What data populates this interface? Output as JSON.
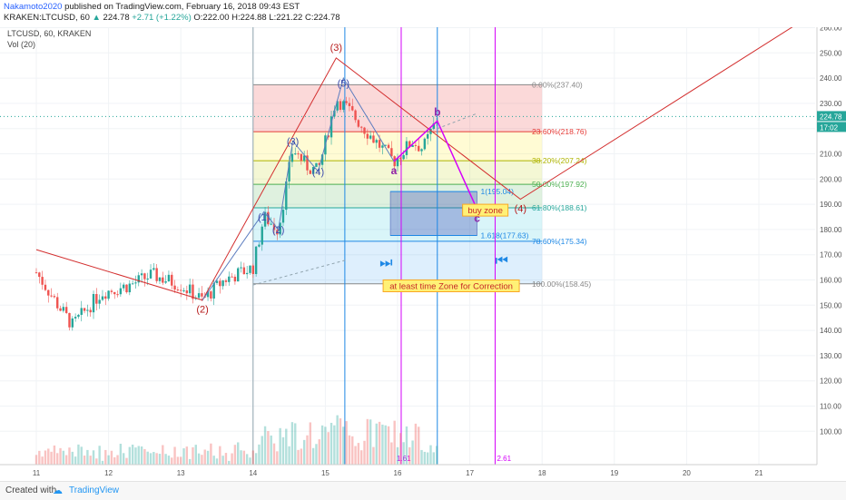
{
  "header": {
    "author": "Nakamoto2020",
    "published": "published on TradingView.com, February 16, 2018 09:43 EST",
    "symbol": "KRAKEN:LTCUSD, 60",
    "change_arrow": "▲",
    "last": "224.78",
    "change": "+2.71 (+1.22%)",
    "open": "O:222.00",
    "high": "H:224.88",
    "low": "L:221.22",
    "close": "C:224.78"
  },
  "legend": {
    "symbol": "LTCUSD, 60, KRAKEN",
    "volume": "Vol (20)"
  },
  "footer": {
    "created": "Created with",
    "brand": "TradingView",
    "cloud_icon": "cloud-icon"
  },
  "colors": {
    "up": "#26a69a",
    "down": "#ef5350",
    "wave": "#d32f2f",
    "minor_wave": "#5c7cbf",
    "abc": "#d500f9",
    "fib_line_blue": "#2962ff"
  },
  "chart_data": {
    "type": "candlestick",
    "title": "",
    "ylim": [
      90,
      265
    ],
    "y_ticks": [
      "260.00",
      "250.00",
      "240.00",
      "230.00",
      "220.00",
      "210.00",
      "200.00",
      "190.00",
      "180.00",
      "170.00",
      "160.00",
      "150.00",
      "140.00",
      "130.00",
      "120.00",
      "110.00",
      "100.00"
    ],
    "x_ticks": [
      "11",
      "12",
      "13",
      "14",
      "15",
      "16",
      "17",
      "18",
      "19",
      "20",
      "21"
    ],
    "last_price": "224.78",
    "price_badges": [
      "224.78",
      "17:02"
    ],
    "fibonacci": [
      {
        "label": "0.00%(237.40)",
        "price": 237.4,
        "color": "#888888"
      },
      {
        "label": "23.60%(218.76)",
        "price": 218.76,
        "color": "#e53935"
      },
      {
        "label": "38.20%(207.24)",
        "price": 207.24,
        "color": "#aeb400"
      },
      {
        "label": "50.00%(197.92)",
        "price": 197.92,
        "color": "#4caf50"
      },
      {
        "label": "61.80%(188.61)",
        "price": 188.61,
        "color": "#26a69a"
      },
      {
        "label": "78.60%(175.34)",
        "price": 175.34,
        "color": "#1e88e5"
      },
      {
        "label": "100.00%(158.45)",
        "price": 158.45,
        "color": "#888888"
      }
    ],
    "extension_labels": [
      {
        "label": "1(195.04)",
        "price": 195.04
      },
      {
        "label": "1.618(177.63)",
        "price": 177.63
      }
    ],
    "elliott_major": [
      {
        "label": "(2)",
        "day": 13.3,
        "price": 152
      },
      {
        "label": "(3)",
        "day": 15.15,
        "price": 248
      },
      {
        "label": "(4)",
        "day": 17.7,
        "price": 192
      }
    ],
    "elliott_minor": [
      {
        "label": "(1)",
        "day": 14.15,
        "price": 185
      },
      {
        "label": "(2)",
        "day": 14.35,
        "price": 180
      },
      {
        "label": "(3)",
        "day": 14.55,
        "price": 215
      },
      {
        "label": "(4)",
        "day": 14.9,
        "price": 203
      },
      {
        "label": "(5)",
        "day": 15.25,
        "price": 238
      }
    ],
    "abc_labels": [
      {
        "label": "a",
        "day": 15.95,
        "price": 207
      },
      {
        "label": "b",
        "day": 16.55,
        "price": 223
      },
      {
        "label": "c",
        "day": 17.1,
        "price": 188
      }
    ],
    "annotations": [
      "buy zone",
      "at least time Zone for Correction"
    ],
    "time_labels": [
      "1.61",
      "2.61"
    ],
    "volume_ylim": [
      0,
      100
    ]
  }
}
